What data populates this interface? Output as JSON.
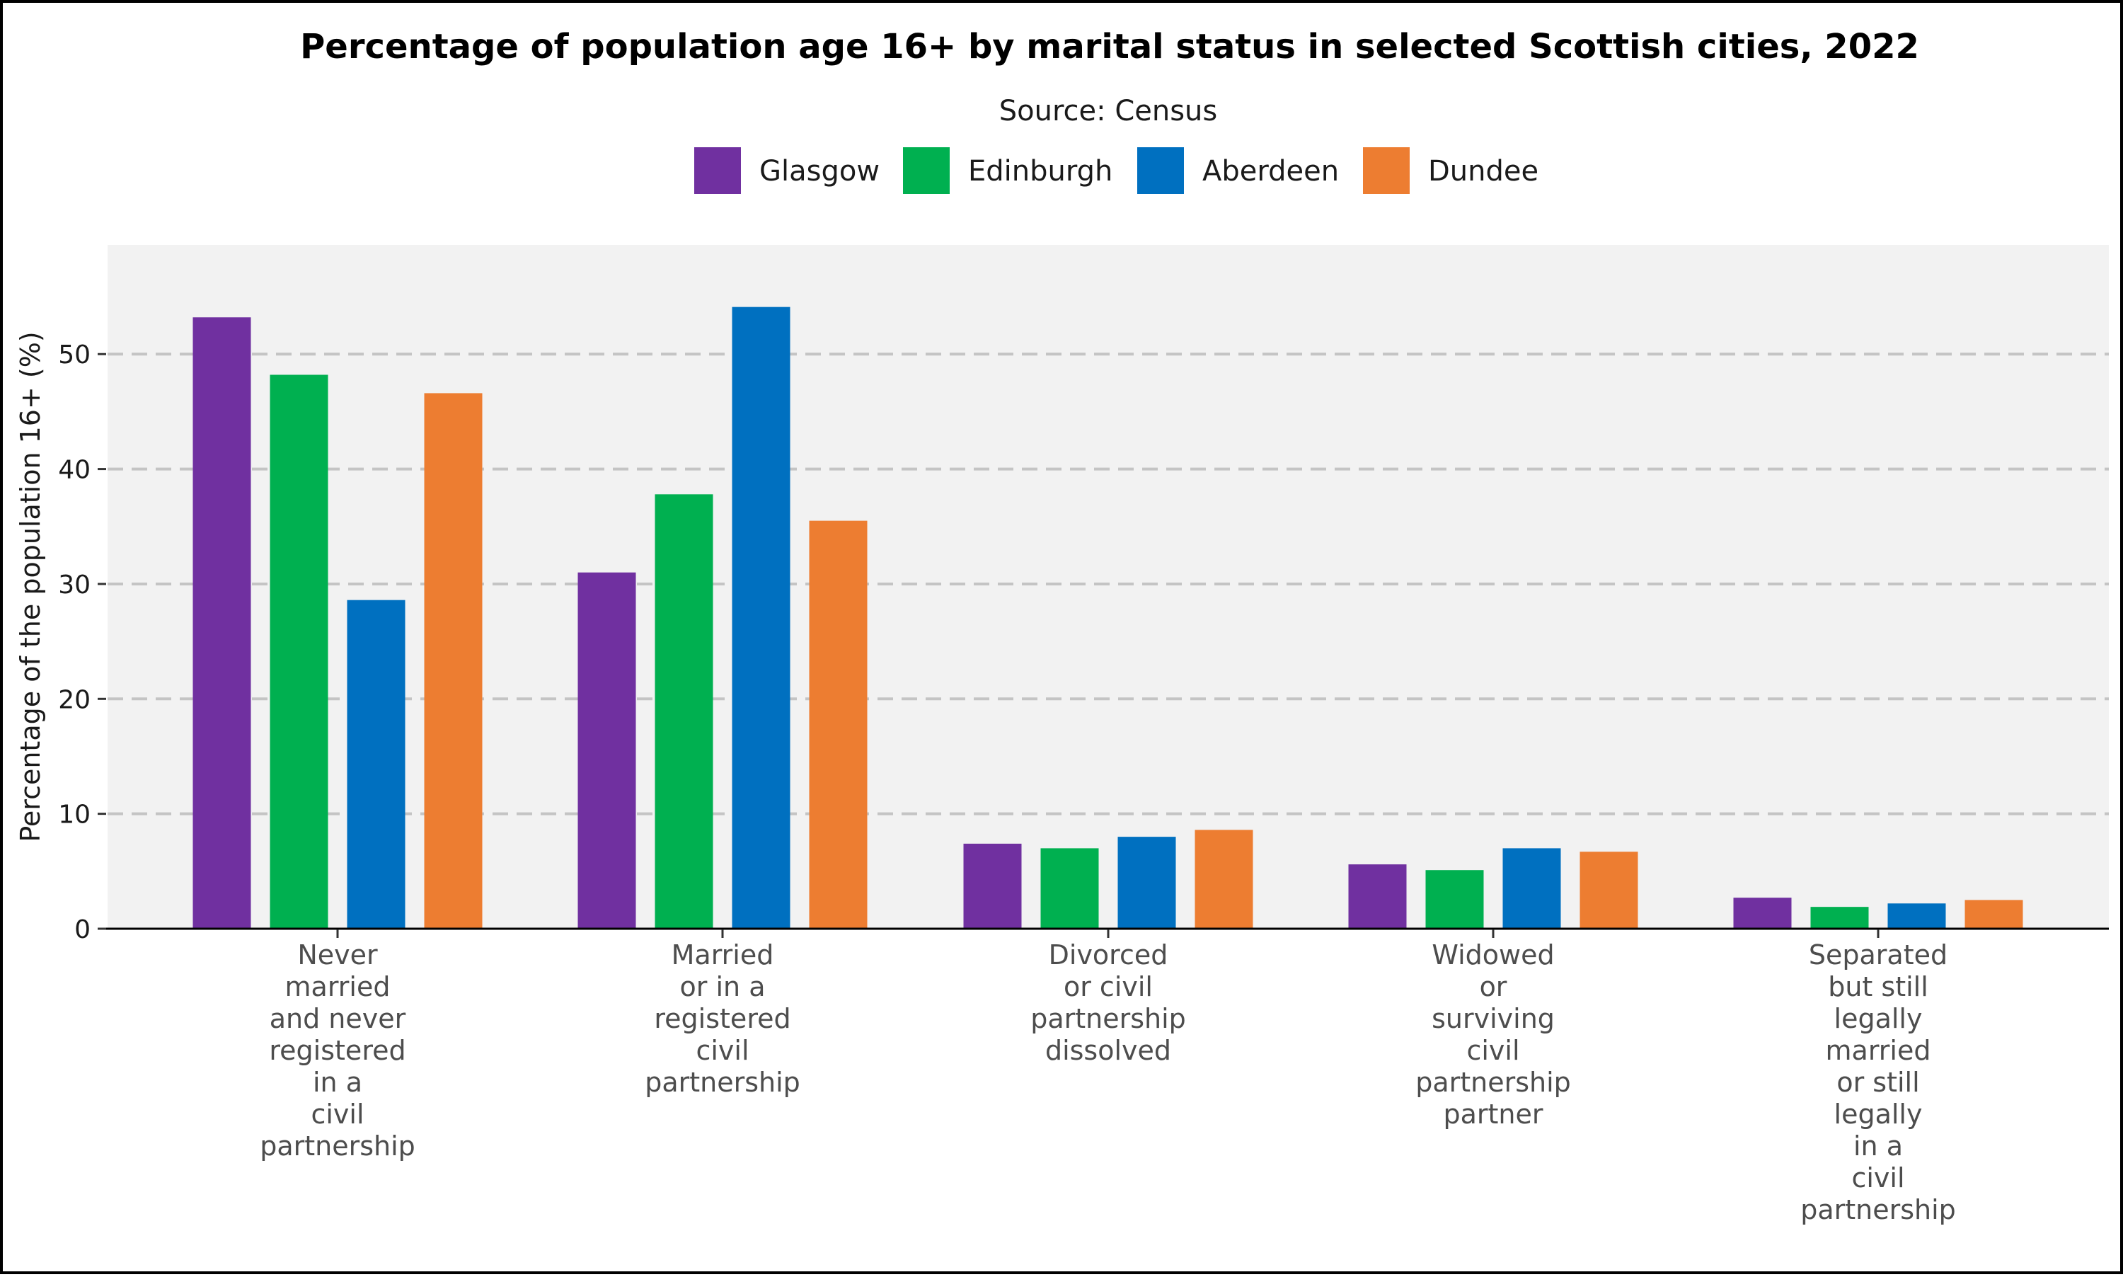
{
  "chart_data": {
    "type": "bar",
    "title": "Percentage of population age 16+ by marital status in selected Scottish cities, 2022",
    "subtitle": "Source: Census",
    "ylabel": "Percentage of the population 16+ (%)",
    "xlabel": "",
    "ylim": [
      0,
      59.5
    ],
    "yticks": [
      0,
      10,
      20,
      30,
      40,
      50
    ],
    "grid": "horizontal dashed",
    "legend_position": "top",
    "categories": [
      [
        "Never",
        "married",
        "and never",
        "registered",
        "in a",
        "civil",
        "partnership"
      ],
      [
        "Married",
        "or in a",
        "registered",
        "civil",
        "partnership"
      ],
      [
        "Divorced",
        "or civil",
        "partnership",
        "dissolved"
      ],
      [
        "Widowed",
        "or",
        "surviving",
        "civil",
        "partnership",
        "partner"
      ],
      [
        "Separated",
        "but still",
        "legally",
        "married",
        "or still",
        "legally",
        "in a",
        "civil",
        "partnership"
      ]
    ],
    "series": [
      {
        "name": "Glasgow",
        "color": "#7030a0",
        "values": [
          53.2,
          31.0,
          7.4,
          5.6,
          2.7
        ]
      },
      {
        "name": "Edinburgh",
        "color": "#00b050",
        "values": [
          48.2,
          37.8,
          7.0,
          5.1,
          1.9
        ]
      },
      {
        "name": "Aberdeen",
        "color": "#0070c0",
        "values": [
          28.6,
          54.1,
          8.0,
          7.0,
          2.2
        ]
      },
      {
        "name": "Dundee",
        "color": "#ed7d31",
        "values": [
          46.6,
          35.5,
          8.6,
          6.7,
          2.5
        ]
      }
    ]
  }
}
